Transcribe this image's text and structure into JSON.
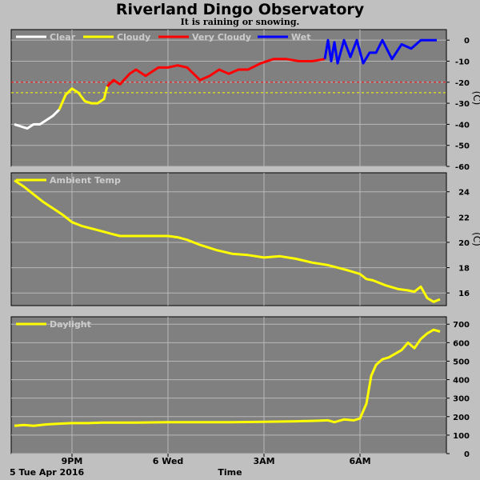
{
  "title": "Riverland Dingo Observatory",
  "subtitle": "It is raining or snowing.",
  "x_axis": {
    "title": "Time",
    "date_label": "5 Tue Apr 2016",
    "ticks": [
      {
        "label": "9PM",
        "t": 21
      },
      {
        "label": "6 Wed",
        "t": 24
      },
      {
        "label": "3AM",
        "t": 27
      },
      {
        "label": "6AM",
        "t": 30
      }
    ],
    "range": [
      19.1,
      32.7
    ]
  },
  "colors": {
    "plot_bg": "#808080",
    "grid": "#b8b8b8",
    "clear": "#ffffff",
    "cloudy": "#ffff00",
    "very_cloudy": "#ff0000",
    "wet": "#0000ff",
    "ambient": "#ffff00",
    "daylight": "#ffff00",
    "legend_text": "#cccccc"
  },
  "chart_data": [
    {
      "type": "line",
      "panel": "sky",
      "ylabel": "(C)",
      "ylim": [
        -60,
        5
      ],
      "yticks": [
        0,
        -10,
        -20,
        -30,
        -40,
        -50,
        -60
      ],
      "threshold_lines": [
        {
          "y": -20,
          "color": "#ff0000"
        },
        {
          "y": -25,
          "color": "#ffff00"
        }
      ],
      "legend": [
        {
          "name": "Clear",
          "color": "#ffffff"
        },
        {
          "name": "Cloudy",
          "color": "#ffff00"
        },
        {
          "name": "Very Cloudy",
          "color": "#ff0000"
        },
        {
          "name": "Wet",
          "color": "#0000ff"
        }
      ],
      "series": [
        {
          "name": "Clear",
          "color": "#ffffff",
          "x": [
            19.2,
            19.4,
            19.6,
            19.8,
            20.0,
            20.2,
            20.4,
            20.6
          ],
          "y": [
            -40,
            -41,
            -42,
            -40,
            -40,
            -38,
            -36,
            -33
          ]
        },
        {
          "name": "Cloudy",
          "color": "#ffff00",
          "x": [
            20.6,
            20.8,
            21.0,
            21.2,
            21.4,
            21.6,
            21.8,
            21.9,
            22.0,
            22.1
          ],
          "y": [
            -33,
            -26,
            -23,
            -25,
            -29,
            -30,
            -30,
            -29,
            -28,
            -22
          ]
        },
        {
          "name": "Very Cloudy",
          "color": "#ff0000",
          "x": [
            22.1,
            22.3,
            22.5,
            22.8,
            23.0,
            23.3,
            23.7,
            24.0,
            24.3,
            24.6,
            24.8,
            25.0,
            25.3,
            25.6,
            25.9,
            26.2,
            26.5,
            26.9,
            27.3,
            27.7,
            28.1,
            28.5,
            28.9
          ],
          "y": [
            -22,
            -19,
            -21,
            -16,
            -14,
            -17,
            -13,
            -13,
            -12,
            -13,
            -16,
            -19,
            -17,
            -14,
            -16,
            -14,
            -14,
            -11,
            -9,
            -9,
            -10,
            -10,
            -9
          ]
        },
        {
          "name": "Wet",
          "color": "#0000ff",
          "x": [
            28.9,
            29.0,
            29.1,
            29.2,
            29.3,
            29.5,
            29.7,
            29.9,
            30.1,
            30.3,
            30.5,
            30.7,
            31.0,
            31.3,
            31.6,
            31.9,
            32.2,
            32.4
          ],
          "y": [
            -9,
            0,
            -10,
            -1,
            -11,
            0,
            -8,
            0,
            -11,
            -6,
            -6,
            0,
            -9,
            -2,
            -4,
            0,
            0,
            0
          ]
        }
      ]
    },
    {
      "type": "line",
      "panel": "ambient",
      "ylabel": "(C)",
      "ylim": [
        15,
        25.5
      ],
      "yticks": [
        24,
        22,
        20,
        18,
        16
      ],
      "legend": [
        {
          "name": "Ambient Temp",
          "color": "#ffff00"
        }
      ],
      "series": [
        {
          "name": "Ambient Temp",
          "color": "#ffff00",
          "x": [
            19.2,
            19.5,
            19.8,
            20.1,
            20.4,
            20.7,
            21.0,
            21.3,
            21.6,
            21.9,
            22.2,
            22.5,
            23.0,
            23.5,
            24.0,
            24.3,
            24.6,
            25.0,
            25.5,
            26.0,
            26.5,
            27.0,
            27.5,
            28.0,
            28.5,
            29.0,
            29.3,
            29.6,
            30.0,
            30.2,
            30.4,
            30.8,
            31.2,
            31.5,
            31.7,
            31.9,
            32.1,
            32.3,
            32.5
          ],
          "y": [
            24.9,
            24.4,
            23.8,
            23.2,
            22.7,
            22.2,
            21.6,
            21.3,
            21.1,
            20.9,
            20.7,
            20.5,
            20.5,
            20.5,
            20.5,
            20.4,
            20.2,
            19.8,
            19.4,
            19.1,
            19.0,
            18.8,
            18.9,
            18.7,
            18.4,
            18.2,
            18.0,
            17.8,
            17.5,
            17.1,
            17.0,
            16.6,
            16.3,
            16.2,
            16.1,
            16.5,
            15.6,
            15.3,
            15.5
          ]
        }
      ]
    },
    {
      "type": "line",
      "panel": "daylight",
      "ylim": [
        0,
        740
      ],
      "yticks": [
        700,
        600,
        500,
        400,
        300,
        200,
        100,
        0
      ],
      "legend": [
        {
          "name": "Daylight",
          "color": "#ffff00"
        }
      ],
      "series": [
        {
          "name": "Daylight",
          "color": "#ffff00",
          "x": [
            19.2,
            19.5,
            19.8,
            20.2,
            20.6,
            21.0,
            21.5,
            22.0,
            23.0,
            24.0,
            25.0,
            26.0,
            27.0,
            28.0,
            28.7,
            29.0,
            29.2,
            29.5,
            29.8,
            30.0,
            30.2,
            30.35,
            30.5,
            30.7,
            30.9,
            31.1,
            31.3,
            31.5,
            31.7,
            31.9,
            32.1,
            32.3,
            32.5
          ],
          "y": [
            150,
            155,
            150,
            158,
            162,
            165,
            165,
            168,
            168,
            170,
            170,
            170,
            172,
            175,
            178,
            180,
            170,
            185,
            180,
            190,
            270,
            420,
            480,
            510,
            520,
            540,
            560,
            600,
            570,
            620,
            650,
            670,
            660
          ]
        }
      ]
    }
  ]
}
